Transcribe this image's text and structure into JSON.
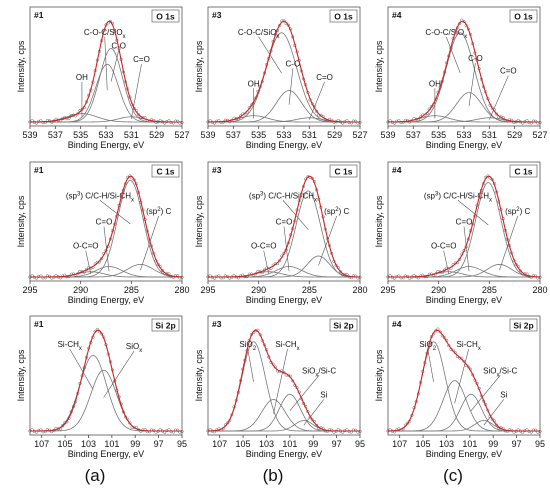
{
  "captions": [
    "(a)",
    "(b)",
    "(c)"
  ],
  "chart_data": [
    {
      "type": "line",
      "sample": "#1",
      "core_level": "O 1s",
      "xlabel": "Binding Energy, eV",
      "ylabel": "Intensity, cps",
      "xlim": [
        539,
        527
      ],
      "xticks": [
        539,
        537,
        535,
        533,
        531,
        529,
        527
      ],
      "total": {
        "center": 532.8,
        "width": 1.4
      },
      "peaks": [
        {
          "label": "OH",
          "center": 534.9,
          "height": 0.08,
          "width": 1.2
        },
        {
          "label": "C-O-C/SiOx",
          "center": 532.9,
          "height": 0.55,
          "width": 0.9
        },
        {
          "label": "C-O",
          "center": 532.6,
          "height": 0.7,
          "width": 0.9
        },
        {
          "label": "C=O",
          "center": 531.0,
          "height": 0.05,
          "width": 1.0
        }
      ]
    },
    {
      "type": "line",
      "sample": "#3",
      "core_level": "O 1s",
      "xlabel": "Binding Energy, eV",
      "ylabel": "Intensity, cps",
      "xlim": [
        539,
        527
      ],
      "xticks": [
        539,
        537,
        535,
        533,
        531,
        529,
        527
      ],
      "total": {
        "center": 533.0,
        "width": 1.5
      },
      "peaks": [
        {
          "label": "OH",
          "center": 535.4,
          "height": 0.06,
          "width": 1.1
        },
        {
          "label": "C-O-C/SiOx",
          "center": 533.2,
          "height": 0.85,
          "width": 1.2
        },
        {
          "label": "C-O",
          "center": 532.6,
          "height": 0.3,
          "width": 1.0
        },
        {
          "label": "C=O",
          "center": 531.0,
          "height": 0.04,
          "width": 1.0
        }
      ]
    },
    {
      "type": "line",
      "sample": "#4",
      "core_level": "O 1s",
      "xlabel": "Binding Energy, eV",
      "ylabel": "Intensity, cps",
      "xlim": [
        539,
        527
      ],
      "xticks": [
        539,
        537,
        535,
        533,
        531,
        529,
        527
      ],
      "total": {
        "center": 533.0,
        "width": 1.5
      },
      "peaks": [
        {
          "label": "OH",
          "center": 535.3,
          "height": 0.06,
          "width": 1.1
        },
        {
          "label": "C-O-C/SiOx",
          "center": 533.3,
          "height": 0.85,
          "width": 1.1
        },
        {
          "label": "C-O",
          "center": 532.6,
          "height": 0.28,
          "width": 1.0
        },
        {
          "label": "C=O",
          "center": 531.0,
          "height": 0.04,
          "width": 1.0
        }
      ]
    },
    {
      "type": "line",
      "sample": "#1",
      "core_level": "C 1s",
      "xlabel": "Binding Energy, eV",
      "ylabel": "Intensity, cps",
      "xlim": [
        295,
        280
      ],
      "xticks": [
        295,
        290,
        285,
        280
      ],
      "total": {
        "center": 285.0,
        "width": 1.4
      },
      "peaks": [
        {
          "label": "O-C=O",
          "center": 289.0,
          "height": 0.05,
          "width": 1.3
        },
        {
          "label": "C=O",
          "center": 287.2,
          "height": 0.1,
          "width": 1.3
        },
        {
          "label": "(sp3) C/C-H/Si-CHx",
          "center": 285.1,
          "height": 0.92,
          "width": 1.25
        },
        {
          "label": "(sp2) C",
          "center": 284.1,
          "height": 0.12,
          "width": 1.3
        }
      ]
    },
    {
      "type": "line",
      "sample": "#3",
      "core_level": "C 1s",
      "xlabel": "Binding Energy, eV",
      "ylabel": "Intensity, cps",
      "xlim": [
        295,
        280
      ],
      "xticks": [
        295,
        290,
        285,
        280
      ],
      "total": {
        "center": 285.0,
        "width": 1.4
      },
      "peaks": [
        {
          "label": "O-C=O",
          "center": 289.0,
          "height": 0.05,
          "width": 1.3
        },
        {
          "label": "C=O",
          "center": 287.0,
          "height": 0.1,
          "width": 1.3
        },
        {
          "label": "(sp3) C/C-H/Si-CHx",
          "center": 285.1,
          "height": 0.82,
          "width": 1.2
        },
        {
          "label": "(sp2) C",
          "center": 284.1,
          "height": 0.2,
          "width": 1.1
        }
      ]
    },
    {
      "type": "line",
      "sample": "#4",
      "core_level": "C 1s",
      "xlabel": "Binding Energy, eV",
      "ylabel": "Intensity, cps",
      "xlim": [
        295,
        280
      ],
      "xticks": [
        295,
        290,
        285,
        280
      ],
      "total": {
        "center": 285.0,
        "width": 1.4
      },
      "peaks": [
        {
          "label": "O-C=O",
          "center": 289.0,
          "height": 0.05,
          "width": 1.3
        },
        {
          "label": "C=O",
          "center": 287.0,
          "height": 0.1,
          "width": 1.3
        },
        {
          "label": "(sp3) C/C-H/Si-CHx",
          "center": 285.1,
          "height": 0.9,
          "width": 1.25
        },
        {
          "label": "(sp2) C",
          "center": 284.0,
          "height": 0.12,
          "width": 1.2
        }
      ]
    },
    {
      "type": "line",
      "sample": "#1",
      "core_level": "Si 2p",
      "xlabel": "Binding Energy, eV",
      "ylabel": "Intensity, cps",
      "xlim": [
        108,
        95
      ],
      "xticks": [
        107,
        105,
        103,
        101,
        99,
        97,
        95
      ],
      "total": {
        "center": 102.3,
        "width": 1.5
      },
      "peaks": [
        {
          "label": "Si-CHx",
          "center": 102.6,
          "height": 0.72,
          "width": 1.15
        },
        {
          "label": "SiOx",
          "center": 101.7,
          "height": 0.58,
          "width": 1.1
        }
      ]
    },
    {
      "type": "line",
      "sample": "#3",
      "core_level": "Si 2p",
      "xlabel": "Binding Energy, eV",
      "ylabel": "Intensity, cps",
      "xlim": [
        108,
        95
      ],
      "xticks": [
        107,
        105,
        103,
        101,
        99,
        97,
        95
      ],
      "total": {
        "center": 103.8,
        "width": 1.6
      },
      "peaks": [
        {
          "label": "SiO2",
          "center": 104.1,
          "height": 0.85,
          "width": 1.0
        },
        {
          "label": "Si-CHx",
          "center": 102.4,
          "height": 0.3,
          "width": 1.0
        },
        {
          "label": "SiOx/Si-C",
          "center": 101.0,
          "height": 0.35,
          "width": 0.9
        },
        {
          "label": "Si",
          "center": 99.8,
          "height": 0.1,
          "width": 0.8
        }
      ]
    },
    {
      "type": "line",
      "sample": "#4",
      "core_level": "Si 2p",
      "xlabel": "Binding Energy, eV",
      "ylabel": "Intensity, cps",
      "xlim": [
        108,
        95
      ],
      "xticks": [
        107,
        105,
        103,
        101,
        99,
        97,
        95
      ],
      "total": {
        "center": 103.8,
        "width": 1.6
      },
      "peaks": [
        {
          "label": "SiO2",
          "center": 104.1,
          "height": 0.85,
          "width": 1.0
        },
        {
          "label": "Si-CHx",
          "center": 102.3,
          "height": 0.48,
          "width": 1.0
        },
        {
          "label": "SiOx/Si-C",
          "center": 100.9,
          "height": 0.35,
          "width": 0.9
        },
        {
          "label": "Si",
          "center": 99.8,
          "height": 0.1,
          "width": 0.8
        }
      ]
    }
  ]
}
